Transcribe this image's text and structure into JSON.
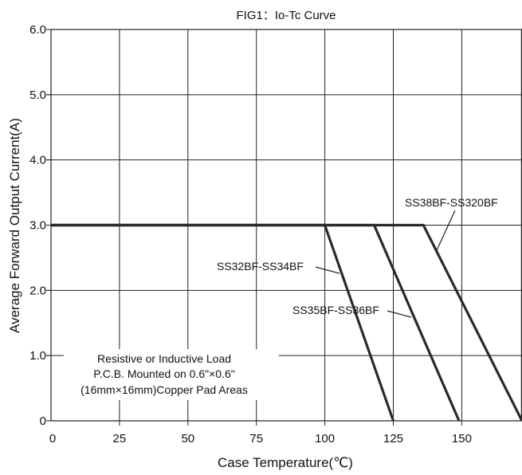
{
  "chart_data": {
    "type": "line",
    "title": "FIG1：Io-Tc Curve",
    "xlabel": "Case Temperature(℃)",
    "ylabel": "Average Forward Output Current(A)",
    "xlim": [
      0,
      172
    ],
    "ylim": [
      0,
      6.0
    ],
    "x_ticks": [
      0,
      25,
      50,
      75,
      100,
      125,
      150
    ],
    "x_tick_labels": [
      "0",
      "25",
      "50",
      "75",
      "100",
      "125",
      "150"
    ],
    "y_ticks": [
      0,
      1.0,
      2.0,
      3.0,
      4.0,
      5.0,
      6.0
    ],
    "y_tick_labels": [
      "0",
      "1.0",
      "2.0",
      "3.0",
      "4.0",
      "5.0",
      "6.0"
    ],
    "grid": true,
    "series": [
      {
        "name": "SS32BF-SS34BF",
        "x": [
          0,
          100,
          125
        ],
        "y": [
          3.0,
          3.0,
          0
        ]
      },
      {
        "name": "SS35BF-SS36BF",
        "x": [
          0,
          118,
          149
        ],
        "y": [
          3.0,
          3.0,
          0
        ]
      },
      {
        "name": "SS38BF-SS320BF",
        "x": [
          0,
          136,
          172
        ],
        "y": [
          3.0,
          3.0,
          0
        ]
      }
    ],
    "annotation_lines": [
      "Resistive or Inductive Load",
      "P.C.B. Mounted on 0.6\"×0.6\"",
      "(16mm×16mm)Copper Pad Areas"
    ]
  }
}
